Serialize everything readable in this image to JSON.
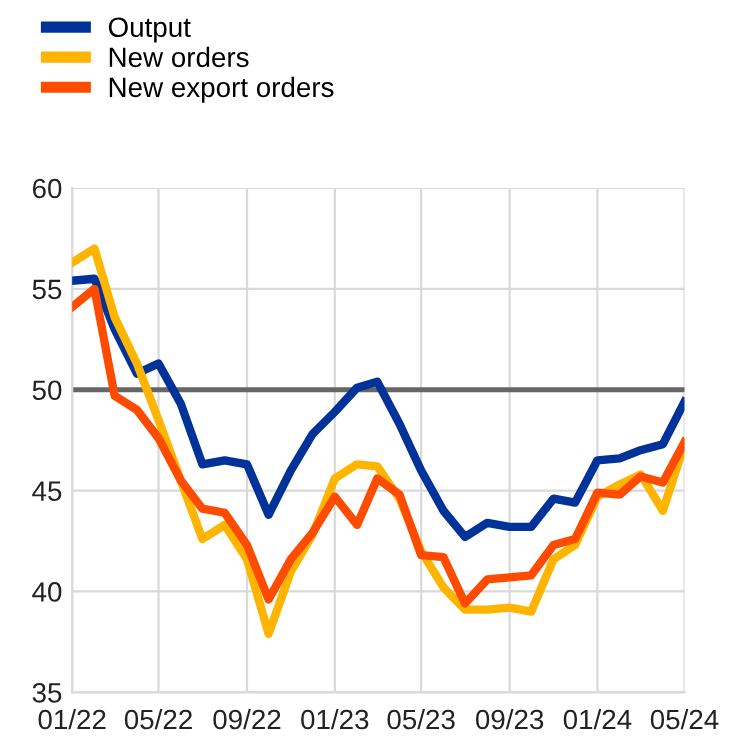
{
  "chart_data": {
    "type": "line",
    "x": [
      "2022-01",
      "2022-02",
      "2022-03",
      "2022-04",
      "2022-05",
      "2022-06",
      "2022-07",
      "2022-08",
      "2022-09",
      "2022-10",
      "2022-11",
      "2022-12",
      "2023-01",
      "2023-02",
      "2023-03",
      "2023-04",
      "2023-05",
      "2023-06",
      "2023-07",
      "2023-08",
      "2023-09",
      "2023-10",
      "2023-11",
      "2023-12",
      "2024-01",
      "2024-02",
      "2024-03",
      "2024-04",
      "2024-05"
    ],
    "series": [
      {
        "name": "Output",
        "color": "#003399",
        "values": [
          55.4,
          55.5,
          53.0,
          50.8,
          51.3,
          49.3,
          46.3,
          46.5,
          46.3,
          43.8,
          46.0,
          47.8,
          48.9,
          50.1,
          50.4,
          48.3,
          46.0,
          44.0,
          42.7,
          43.4,
          43.2,
          43.2,
          44.6,
          44.4,
          46.5,
          46.6,
          47.0,
          47.3,
          49.4
        ]
      },
      {
        "name": "New orders",
        "color": "#ffb400",
        "values": [
          56.3,
          57.0,
          53.6,
          51.3,
          48.5,
          45.5,
          42.6,
          43.3,
          41.6,
          37.9,
          41.0,
          42.8,
          45.6,
          46.3,
          46.2,
          44.6,
          42.0,
          40.2,
          39.1,
          39.1,
          39.2,
          39.0,
          41.6,
          42.3,
          44.7,
          45.3,
          45.8,
          44.0,
          47.3
        ]
      },
      {
        "name": "New export orders",
        "color": "#ff4b00",
        "values": [
          54.1,
          55.0,
          49.7,
          49.0,
          47.6,
          45.5,
          44.1,
          43.9,
          42.3,
          39.6,
          41.6,
          42.9,
          44.7,
          43.3,
          45.6,
          44.8,
          41.8,
          41.7,
          39.4,
          40.6,
          40.7,
          40.8,
          42.3,
          42.6,
          44.9,
          44.8,
          45.7,
          45.4,
          47.4
        ]
      }
    ],
    "xlim": [
      "2022-01",
      "2024-05"
    ],
    "xticks": [
      {
        "value": "2022-01",
        "label": "01/22"
      },
      {
        "value": "2022-05",
        "label": "05/22"
      },
      {
        "value": "2022-09",
        "label": "09/22"
      },
      {
        "value": "2023-01",
        "label": "01/23"
      },
      {
        "value": "2023-05",
        "label": "05/23"
      },
      {
        "value": "2023-09",
        "label": "09/23"
      },
      {
        "value": "2024-01",
        "label": "01/24"
      },
      {
        "value": "2024-05",
        "label": "05/24"
      }
    ],
    "ylim": [
      35,
      60
    ],
    "yticks": [
      35,
      40,
      45,
      50,
      55,
      60
    ],
    "ref_lines": [
      {
        "axis": "y",
        "value": 50,
        "color": "#666666"
      }
    ],
    "grid": true,
    "legend": "top left",
    "line_style": "solid",
    "marker": "none"
  }
}
